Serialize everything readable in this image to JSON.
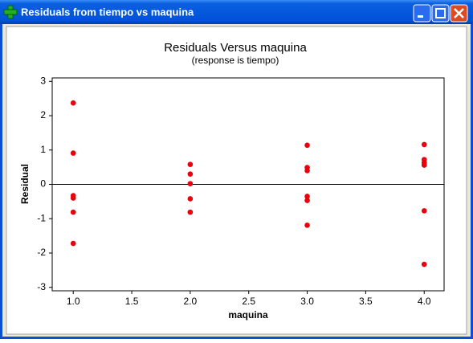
{
  "window": {
    "title": "Residuals from tiempo vs maquina"
  },
  "chart_data": {
    "type": "scatter",
    "title": "Residuals Versus maquina",
    "subtitle": "(response is tiempo)",
    "x_label": "maquina",
    "y_label": "Residual",
    "x": [
      1,
      1,
      1,
      1,
      1,
      1,
      2,
      2,
      2,
      2,
      2,
      3,
      3,
      3,
      3,
      3,
      3,
      4,
      4,
      4,
      4,
      4,
      4
    ],
    "values": [
      2.37,
      0.91,
      -0.33,
      -0.4,
      -0.81,
      -1.72,
      0.58,
      0.3,
      0.02,
      -0.42,
      -0.81,
      1.14,
      0.49,
      0.4,
      -0.35,
      -0.47,
      -1.19,
      1.16,
      0.72,
      0.63,
      0.56,
      -0.77,
      -2.33
    ],
    "color": "#e8000b",
    "xlim": [
      0.82,
      4.17
    ],
    "ylim": [
      -3.1,
      3.1
    ],
    "xticks": [
      {
        "value": 1,
        "label": "1.0"
      },
      {
        "value": 1.5,
        "label": "1.5"
      },
      {
        "value": 2,
        "label": "2.0"
      },
      {
        "value": 2.5,
        "label": "2.5"
      },
      {
        "value": 3,
        "label": "3.0"
      },
      {
        "value": 3.5,
        "label": "3.5"
      },
      {
        "value": 4,
        "label": "4.0"
      }
    ],
    "yticks": [
      -3,
      -2,
      -1,
      0,
      1,
      2,
      3
    ],
    "reference_line": 0
  }
}
